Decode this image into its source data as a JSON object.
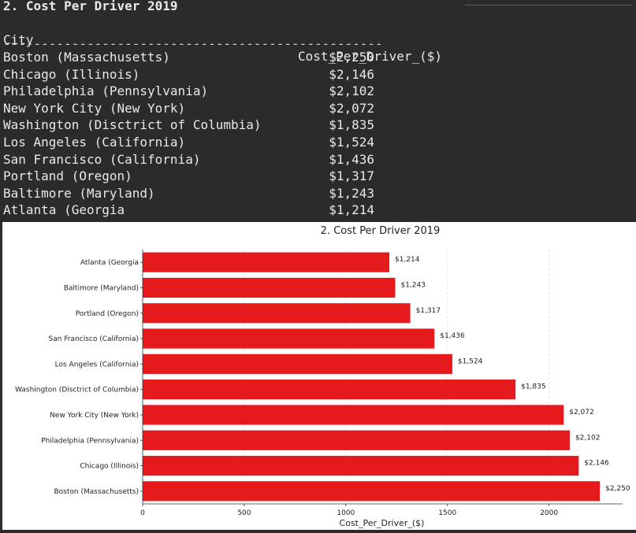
{
  "terminal": {
    "title": "2. Cost Per Driver 2019",
    "col_city": "City",
    "col_cost": "Cost_Per_Driver_($)",
    "separator": "--------------------------------------------------",
    "rows": [
      {
        "city": "Boston (Massachusetts)",
        "cost": "$2,250"
      },
      {
        "city": "Chicago (Illinois)",
        "cost": "$2,146"
      },
      {
        "city": "Philadelphia (Pennsylvania)",
        "cost": "$2,102"
      },
      {
        "city": "New York City (New York)",
        "cost": "$2,072"
      },
      {
        "city": "Washington (Disctrict of Columbia)",
        "cost": "$1,835"
      },
      {
        "city": "Los Angeles (California)",
        "cost": "$1,524"
      },
      {
        "city": "San Francisco (California)",
        "cost": "$1,436"
      },
      {
        "city": "Portland (Oregon)",
        "cost": "$1,317"
      },
      {
        "city": "Baltimore (Maryland)",
        "cost": "$1,243"
      },
      {
        "city": "Atlanta (Georgia",
        "cost": "$1,214"
      }
    ]
  },
  "chart_data": {
    "type": "bar",
    "orientation": "horizontal",
    "title": "2. Cost Per Driver 2019",
    "xlabel": "Cost_Per_Driver_($)",
    "ylabel": "",
    "categories": [
      "Boston (Massachusetts)",
      "Chicago (Illinois)",
      "Philadelphia (Pennsylvania)",
      "New York City (New York)",
      "Washington (Disctrict of Columbia)",
      "Los Angeles (California)",
      "San Francisco (California)",
      "Portland (Oregon)",
      "Baltimore (Maryland)",
      "Atlanta (Georgia"
    ],
    "values": [
      2250,
      2146,
      2102,
      2072,
      1835,
      1524,
      1436,
      1317,
      1243,
      1214
    ],
    "data_labels": [
      "$2,250",
      "$2,146",
      "$2,102",
      "$2,072",
      "$1,835",
      "$1,524",
      "$1,436",
      "$1,317",
      "$1,243",
      "$1,214"
    ],
    "xlim": [
      0,
      2362
    ],
    "xticks": [
      0,
      500,
      1000,
      1500,
      2000
    ],
    "xtick_labels": [
      "0",
      "500",
      "1000",
      "1500",
      "2000"
    ],
    "bar_color": "#e41a1c",
    "grid": "x dashed light"
  }
}
